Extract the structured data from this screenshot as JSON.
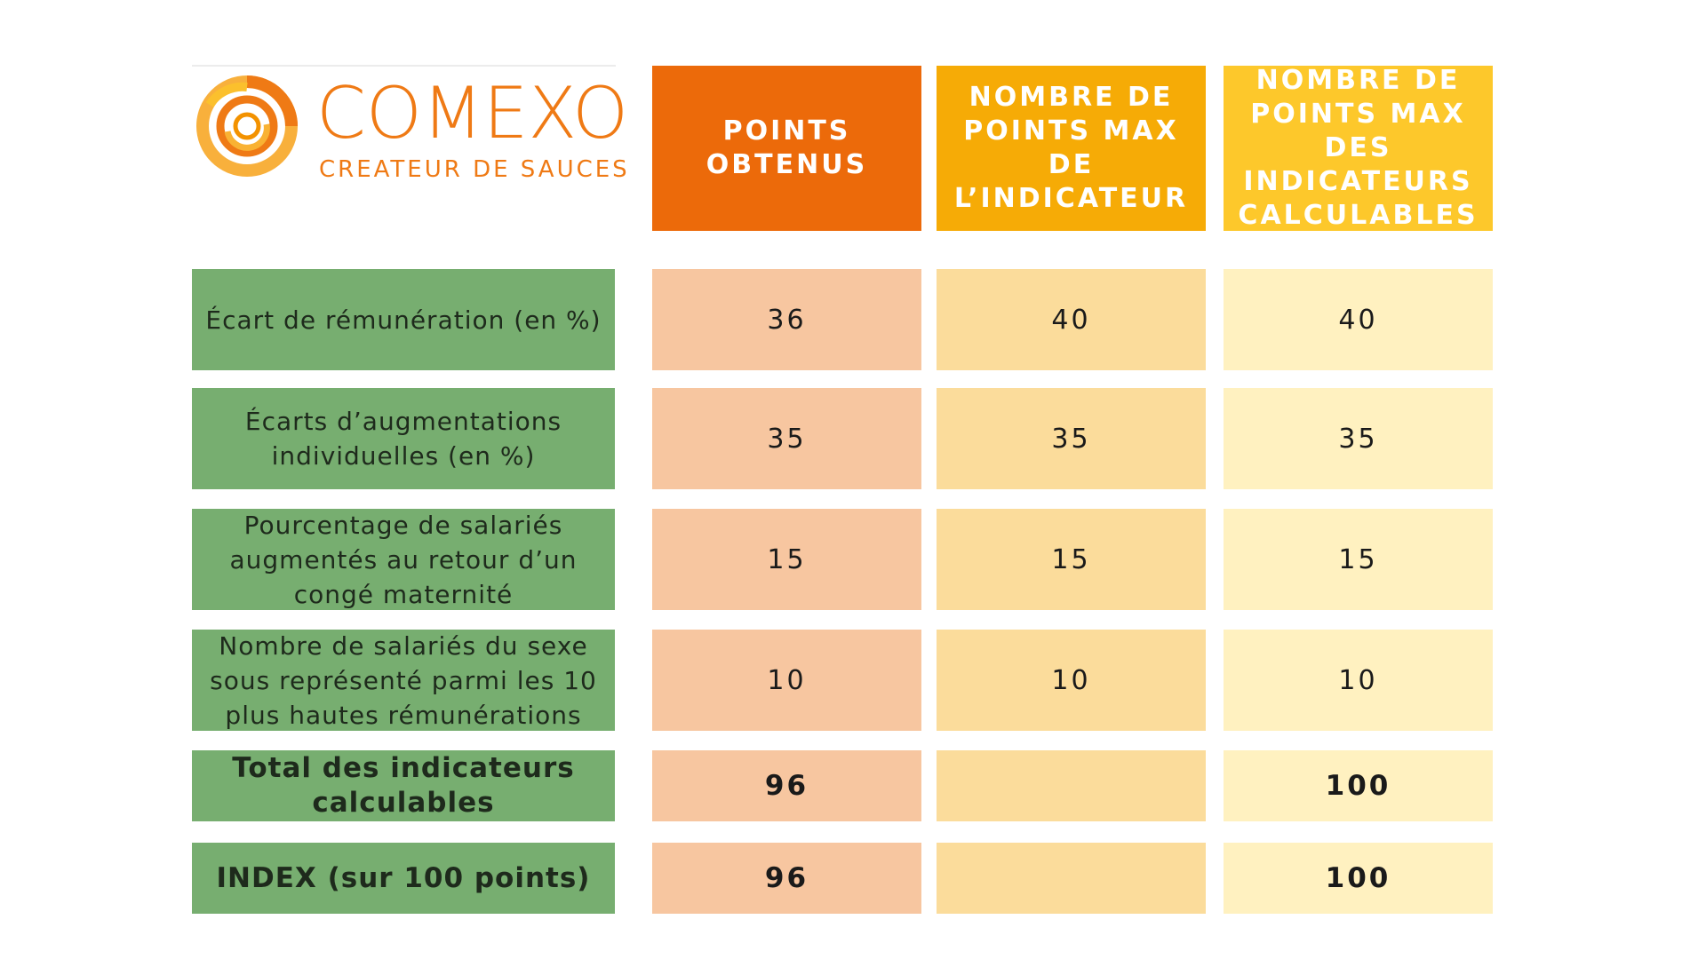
{
  "logo": {
    "name": "COMEXO",
    "tagline": "CREATEUR DE SAUCES",
    "color": "#ef7a15"
  },
  "headers": [
    "POINTS OBTENUS",
    "NOMBRE DE POINTS MAX DE L’INDICATEUR",
    "NOMBRE DE POINTS MAX DES INDICATEURS CALCULABLES"
  ],
  "rows": [
    {
      "label": "Écart de rémunération (en %)",
      "obtained": "36",
      "max_indicator": "40",
      "max_calculable": "40"
    },
    {
      "label": "Écarts d’augmentations individuelles (en %)",
      "obtained": "35",
      "max_indicator": "35",
      "max_calculable": "35"
    },
    {
      "label": "Pourcentage de salariés augmentés au retour d’un congé maternité",
      "obtained": "15",
      "max_indicator": "15",
      "max_calculable": "15"
    },
    {
      "label": "Nombre de salariés du sexe sous représenté parmi les 10 plus hautes rémunérations",
      "obtained": "10",
      "max_indicator": "10",
      "max_calculable": "10"
    },
    {
      "label": "Total des indicateurs calculables",
      "obtained": "96",
      "max_indicator": "",
      "max_calculable": "100"
    },
    {
      "label": "INDEX (sur 100 points)",
      "obtained": "96",
      "max_indicator": "",
      "max_calculable": "100"
    }
  ],
  "colors": {
    "header_obtained": "#ec6a0a",
    "header_max_indicator": "#f6ab06",
    "header_max_calculable": "#fdc82b",
    "label_green": "#77ae70",
    "cell_obtained": "#f7c6a0",
    "cell_max_indicator": "#fbdc9b",
    "cell_max_calculable": "#fff1c0"
  }
}
